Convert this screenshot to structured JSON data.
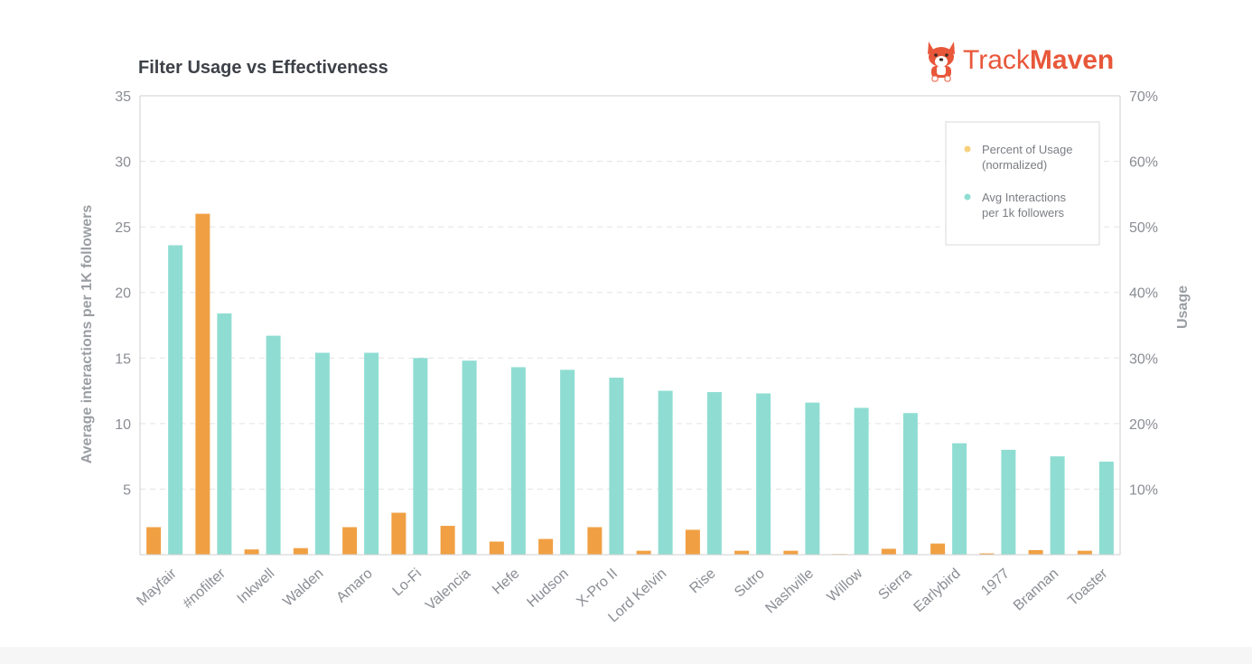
{
  "brand": {
    "name_light": "Track",
    "name_bold": "Maven",
    "logo_icon": "corgi-mascot-icon",
    "color": "#e8573a"
  },
  "chart_data": {
    "type": "bar",
    "title": "Filter Usage vs Effectiveness",
    "categories": [
      "Mayfair",
      "#nofilter",
      "Inkwell",
      "Walden",
      "Amaro",
      "Lo-Fi",
      "Valencia",
      "Hefe",
      "Hudson",
      "X-Pro II",
      "Lord Kelvin",
      "Rise",
      "Sutro",
      "Nashville",
      "Willow",
      "Sierra",
      "Earlybird",
      "1977",
      "Brannan",
      "Toaster"
    ],
    "series": [
      {
        "name": "Percent of Usage (normalized)",
        "axis": "right",
        "color": "#f0a043",
        "values": [
          4.2,
          52.0,
          0.8,
          1.0,
          4.2,
          6.4,
          4.4,
          2.0,
          2.4,
          4.2,
          0.6,
          3.8,
          0.6,
          0.6,
          0.1,
          0.9,
          1.7,
          0.2,
          0.7,
          0.6
        ]
      },
      {
        "name": "Avg Interactions per 1k followers",
        "axis": "left",
        "color": "#8fddd2",
        "values": [
          23.6,
          18.4,
          16.7,
          15.4,
          15.4,
          15.0,
          14.8,
          14.3,
          14.1,
          13.5,
          12.5,
          12.4,
          12.3,
          11.6,
          11.2,
          10.8,
          8.5,
          8.0,
          7.5,
          7.1
        ]
      }
    ],
    "ylabel": "Average interactions per 1K followers",
    "y2label": "Usage",
    "ylim": [
      0,
      35
    ],
    "y2lim": [
      0,
      70
    ],
    "yticks": [
      "5",
      "10",
      "15",
      "20",
      "25",
      "30",
      "35"
    ],
    "y2ticks": [
      "10%",
      "20%",
      "30%",
      "40%",
      "50%",
      "60%",
      "70%"
    ],
    "legend_items": [
      {
        "label_line1": "Percent of Usage",
        "label_line2": "(normalized)"
      },
      {
        "label_line1": "Avg Interactions",
        "label_line2": "per 1k followers"
      }
    ],
    "legend_position": "top-right",
    "grid": true
  }
}
